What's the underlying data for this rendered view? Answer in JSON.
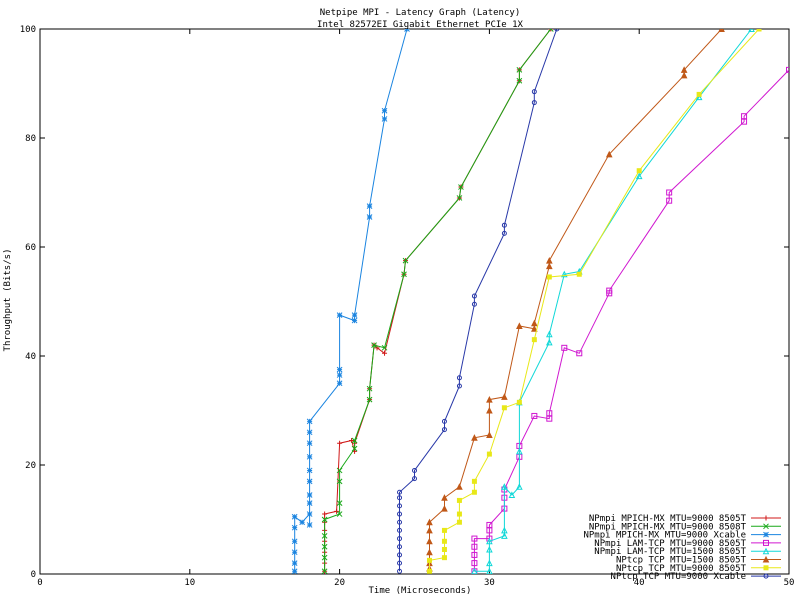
{
  "chart_data": {
    "type": "line",
    "title": "Netpipe MPI - Latency Graph (Latency)",
    "subtitle": "Intel 82572EI Gigabit Ethernet PCIe 1X",
    "xlabel": "Time (Microseconds)",
    "ylabel": "Throughput (Bits/s)",
    "xlim": [
      0,
      50
    ],
    "ylim": [
      0,
      100
    ],
    "xticks": [
      "0",
      "10",
      "20",
      "30",
      "40",
      "50"
    ],
    "yticks": [
      "0",
      "20",
      "40",
      "60",
      "80",
      "100"
    ],
    "grid": false,
    "legend_position": "bottom-right",
    "series": [
      {
        "name": "NPmpi MPICH-MX MTU=9000 8505T",
        "color": "#d01818",
        "marker": "plus",
        "points": [
          [
            19,
            0.5
          ],
          [
            19,
            2
          ],
          [
            19,
            4
          ],
          [
            19,
            6
          ],
          [
            19,
            8
          ],
          [
            19,
            9.5
          ],
          [
            19,
            11
          ],
          [
            19.8,
            11.5
          ],
          [
            20,
            24
          ],
          [
            20.8,
            24.5
          ],
          [
            21,
            22.5
          ],
          [
            21,
            24
          ],
          [
            22,
            32
          ],
          [
            22,
            34
          ],
          [
            22.3,
            42
          ],
          [
            22.5,
            41.5
          ],
          [
            23,
            40.5
          ],
          [
            24.3,
            55
          ],
          [
            24.4,
            57.5
          ],
          [
            28,
            69
          ],
          [
            28.1,
            71
          ],
          [
            32,
            90.5
          ],
          [
            32,
            92.5
          ],
          [
            34.1,
            100
          ]
        ]
      },
      {
        "name": "NPmpi MPICH-MX MTU=9000 8508T",
        "color": "#18a818",
        "marker": "cross",
        "points": [
          [
            19,
            0.5
          ],
          [
            19,
            3
          ],
          [
            19,
            5
          ],
          [
            19,
            7
          ],
          [
            19,
            10
          ],
          [
            20,
            11
          ],
          [
            20,
            13
          ],
          [
            20,
            17
          ],
          [
            20,
            19
          ],
          [
            21,
            23
          ],
          [
            21,
            24.5
          ],
          [
            22,
            32
          ],
          [
            22,
            34
          ],
          [
            22.3,
            42
          ],
          [
            23,
            41.5
          ],
          [
            24.3,
            55
          ],
          [
            24.4,
            57.5
          ],
          [
            28,
            69
          ],
          [
            28.1,
            71
          ],
          [
            32,
            90.5
          ],
          [
            32,
            92.5
          ],
          [
            34.1,
            100
          ]
        ]
      },
      {
        "name": "NPmpi MPICH-MX MTU=9000 Xcable",
        "color": "#1a84e0",
        "marker": "star",
        "points": [
          [
            17,
            0.5
          ],
          [
            17,
            2
          ],
          [
            17,
            4
          ],
          [
            17,
            6
          ],
          [
            17,
            8.5
          ],
          [
            17,
            10.5
          ],
          [
            17.5,
            9.5
          ],
          [
            18,
            11
          ],
          [
            18,
            9
          ],
          [
            18,
            13
          ],
          [
            18,
            14.5
          ],
          [
            18,
            17
          ],
          [
            18,
            19
          ],
          [
            18,
            21.5
          ],
          [
            18,
            24
          ],
          [
            18,
            26
          ],
          [
            18,
            28
          ],
          [
            20,
            35
          ],
          [
            20,
            36.5
          ],
          [
            20,
            37.5
          ],
          [
            20,
            47.5
          ],
          [
            21,
            46.5
          ],
          [
            21,
            47.5
          ],
          [
            22,
            65.5
          ],
          [
            22,
            67.5
          ],
          [
            23,
            83.5
          ],
          [
            23,
            85
          ],
          [
            24.5,
            100
          ]
        ]
      },
      {
        "name": "NPmpi LAM-TCP MTU=9000 8505T",
        "color": "#d018d0",
        "marker": "box",
        "points": [
          [
            29,
            0.5
          ],
          [
            29,
            2
          ],
          [
            29,
            3.5
          ],
          [
            29,
            5
          ],
          [
            29,
            6.5
          ],
          [
            30,
            6.5
          ],
          [
            30,
            8
          ],
          [
            30,
            9
          ],
          [
            31,
            12
          ],
          [
            31,
            14
          ],
          [
            31,
            15.5
          ],
          [
            32,
            21.5
          ],
          [
            32,
            23.5
          ],
          [
            33,
            29
          ],
          [
            34,
            28.5
          ],
          [
            34,
            29.5
          ],
          [
            35,
            41.5
          ],
          [
            36,
            40.5
          ],
          [
            38,
            51.5
          ],
          [
            38,
            52
          ],
          [
            42,
            68.5
          ],
          [
            42,
            70
          ],
          [
            47,
            83
          ],
          [
            47,
            84
          ],
          [
            50,
            92.5
          ]
        ]
      },
      {
        "name": "NPmpi LAM-TCP MTU=1500 8505T",
        "color": "#10d8d8",
        "marker": "hollow-triangle",
        "points": [
          [
            29,
            0.5
          ],
          [
            30,
            0.5
          ],
          [
            30,
            2
          ],
          [
            30,
            4.5
          ],
          [
            30,
            6
          ],
          [
            31,
            7
          ],
          [
            31,
            8
          ],
          [
            31,
            16
          ],
          [
            31.5,
            14.5
          ],
          [
            32,
            16
          ],
          [
            32,
            22.5
          ],
          [
            32,
            31.5
          ],
          [
            34,
            42.5
          ],
          [
            34,
            44
          ],
          [
            35,
            55
          ],
          [
            36,
            55.5
          ],
          [
            40,
            73
          ],
          [
            44,
            87.5
          ],
          [
            47.5,
            100
          ]
        ]
      },
      {
        "name": "NPtcp TCP MTU=1500 8505T",
        "color": "#c05818",
        "marker": "solid-triangle",
        "points": [
          [
            26,
            1
          ],
          [
            26,
            2
          ],
          [
            26,
            4
          ],
          [
            26,
            6
          ],
          [
            26,
            8
          ],
          [
            26,
            9.5
          ],
          [
            27,
            12
          ],
          [
            27,
            14
          ],
          [
            28,
            16
          ],
          [
            29,
            25
          ],
          [
            30,
            25.5
          ],
          [
            30,
            30
          ],
          [
            30,
            32
          ],
          [
            31,
            32.5
          ],
          [
            32,
            45.5
          ],
          [
            33,
            45
          ],
          [
            33,
            46
          ],
          [
            34,
            56.5
          ],
          [
            34,
            57.5
          ],
          [
            38,
            77
          ],
          [
            43,
            91.5
          ],
          [
            43,
            92.5
          ],
          [
            45.5,
            100
          ]
        ]
      },
      {
        "name": "NPtcp TCP MTU=9000 8505T",
        "color": "#e8e818",
        "marker": "solid-box",
        "points": [
          [
            26,
            0.5
          ],
          [
            26,
            2.5
          ],
          [
            27,
            3
          ],
          [
            27,
            4.5
          ],
          [
            27,
            6
          ],
          [
            27,
            8
          ],
          [
            28,
            9.5
          ],
          [
            28,
            11
          ],
          [
            28,
            13.5
          ],
          [
            29,
            15
          ],
          [
            29,
            17
          ],
          [
            30,
            22
          ],
          [
            31,
            30.5
          ],
          [
            32,
            31.5
          ],
          [
            33,
            43
          ],
          [
            34,
            54.5
          ],
          [
            36,
            55
          ],
          [
            40,
            74
          ],
          [
            44,
            88
          ],
          [
            48,
            100
          ]
        ]
      },
      {
        "name": "NPtcp TCP MTU=9000 Xcable",
        "color": "#2838a8",
        "marker": "circle",
        "points": [
          [
            24,
            0.5
          ],
          [
            24,
            2
          ],
          [
            24,
            3.5
          ],
          [
            24,
            5
          ],
          [
            24,
            6.5
          ],
          [
            24,
            8
          ],
          [
            24,
            9.5
          ],
          [
            24,
            11
          ],
          [
            24,
            12.5
          ],
          [
            24,
            14
          ],
          [
            24,
            15
          ],
          [
            25,
            17.5
          ],
          [
            25,
            19
          ],
          [
            27,
            26.5
          ],
          [
            27,
            28
          ],
          [
            28,
            34.5
          ],
          [
            28,
            36
          ],
          [
            29,
            49.5
          ],
          [
            29,
            51
          ],
          [
            31,
            62.5
          ],
          [
            31,
            64
          ],
          [
            33,
            86.5
          ],
          [
            33,
            88.5
          ],
          [
            34.5,
            100
          ]
        ]
      }
    ]
  }
}
